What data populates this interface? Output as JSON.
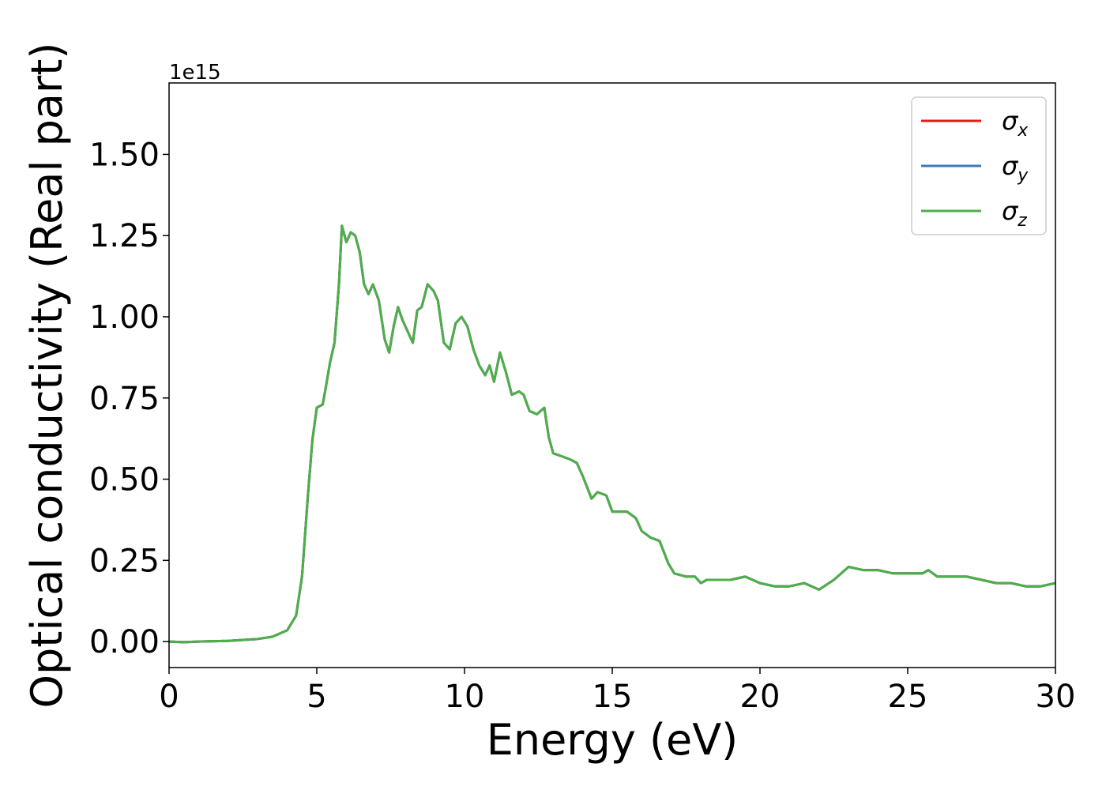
{
  "chart_data": {
    "type": "line",
    "xlabel": "Energy (eV)",
    "ylabel": "Optical conductivity (Real part)",
    "y_offset_label": "1e15",
    "x": [
      0,
      0.5,
      1,
      2,
      3,
      3.5,
      4,
      4.3,
      4.5,
      4.7,
      4.85,
      5.0,
      5.2,
      5.3,
      5.45,
      5.6,
      5.75,
      5.85,
      6.0,
      6.15,
      6.3,
      6.45,
      6.6,
      6.75,
      6.9,
      7.1,
      7.3,
      7.45,
      7.6,
      7.75,
      7.9,
      8.1,
      8.25,
      8.4,
      8.55,
      8.75,
      8.95,
      9.1,
      9.3,
      9.5,
      9.7,
      9.9,
      10.1,
      10.3,
      10.5,
      10.7,
      10.85,
      11.0,
      11.2,
      11.4,
      11.6,
      11.85,
      12.0,
      12.2,
      12.45,
      12.7,
      12.85,
      13.0,
      13.3,
      13.6,
      13.8,
      14.0,
      14.3,
      14.5,
      14.8,
      15.0,
      15.2,
      15.5,
      15.8,
      16.0,
      16.3,
      16.6,
      16.9,
      17.1,
      17.5,
      17.8,
      18.0,
      18.2,
      18.6,
      19.0,
      19.5,
      20.0,
      20.5,
      21.0,
      21.5,
      22.0,
      22.5,
      23.0,
      23.5,
      24.0,
      24.5,
      25.0,
      25.5,
      25.7,
      26.0,
      26.5,
      27.0,
      27.5,
      28.0,
      28.5,
      29.0,
      29.5,
      30.0
    ],
    "series": [
      {
        "name": "σx",
        "color": "#e41a1c",
        "values": [
          0,
          -0.002,
          0,
          0.002,
          0.008,
          0.015,
          0.035,
          0.08,
          0.2,
          0.45,
          0.62,
          0.72,
          0.73,
          0.78,
          0.86,
          0.92,
          1.1,
          1.28,
          1.23,
          1.26,
          1.25,
          1.2,
          1.1,
          1.07,
          1.1,
          1.05,
          0.93,
          0.89,
          0.97,
          1.03,
          0.99,
          0.95,
          0.92,
          1.02,
          1.03,
          1.1,
          1.08,
          1.05,
          0.92,
          0.9,
          0.98,
          1.0,
          0.97,
          0.9,
          0.85,
          0.82,
          0.85,
          0.8,
          0.89,
          0.83,
          0.76,
          0.77,
          0.76,
          0.71,
          0.7,
          0.72,
          0.63,
          0.58,
          0.57,
          0.56,
          0.55,
          0.51,
          0.44,
          0.46,
          0.45,
          0.4,
          0.4,
          0.4,
          0.38,
          0.34,
          0.32,
          0.31,
          0.24,
          0.21,
          0.2,
          0.2,
          0.18,
          0.19,
          0.19,
          0.19,
          0.2,
          0.18,
          0.17,
          0.17,
          0.18,
          0.16,
          0.19,
          0.23,
          0.22,
          0.22,
          0.21,
          0.21,
          0.21,
          0.22,
          0.2,
          0.2,
          0.2,
          0.19,
          0.18,
          0.18,
          0.17,
          0.17,
          0.18
        ]
      },
      {
        "name": "σy",
        "color": "#377eb8",
        "values": [
          0,
          -0.002,
          0,
          0.002,
          0.008,
          0.015,
          0.035,
          0.08,
          0.2,
          0.45,
          0.62,
          0.72,
          0.73,
          0.78,
          0.86,
          0.92,
          1.1,
          1.28,
          1.23,
          1.26,
          1.25,
          1.2,
          1.1,
          1.07,
          1.1,
          1.05,
          0.93,
          0.89,
          0.97,
          1.03,
          0.99,
          0.95,
          0.92,
          1.02,
          1.03,
          1.1,
          1.08,
          1.05,
          0.92,
          0.9,
          0.98,
          1.0,
          0.97,
          0.9,
          0.85,
          0.82,
          0.85,
          0.8,
          0.89,
          0.83,
          0.76,
          0.77,
          0.76,
          0.71,
          0.7,
          0.72,
          0.63,
          0.58,
          0.57,
          0.56,
          0.55,
          0.51,
          0.44,
          0.46,
          0.45,
          0.4,
          0.4,
          0.4,
          0.38,
          0.34,
          0.32,
          0.31,
          0.24,
          0.21,
          0.2,
          0.2,
          0.18,
          0.19,
          0.19,
          0.19,
          0.2,
          0.18,
          0.17,
          0.17,
          0.18,
          0.16,
          0.19,
          0.23,
          0.22,
          0.22,
          0.21,
          0.21,
          0.21,
          0.22,
          0.2,
          0.2,
          0.2,
          0.19,
          0.18,
          0.18,
          0.17,
          0.17,
          0.18
        ]
      },
      {
        "name": "σz",
        "color": "#4daf4a",
        "values": [
          0,
          -0.002,
          0,
          0.002,
          0.008,
          0.015,
          0.035,
          0.08,
          0.2,
          0.45,
          0.62,
          0.72,
          0.73,
          0.78,
          0.86,
          0.92,
          1.1,
          1.28,
          1.23,
          1.26,
          1.25,
          1.2,
          1.1,
          1.07,
          1.1,
          1.05,
          0.93,
          0.89,
          0.97,
          1.03,
          0.99,
          0.95,
          0.92,
          1.02,
          1.03,
          1.1,
          1.08,
          1.05,
          0.92,
          0.9,
          0.98,
          1.0,
          0.97,
          0.9,
          0.85,
          0.82,
          0.85,
          0.8,
          0.89,
          0.83,
          0.76,
          0.77,
          0.76,
          0.71,
          0.7,
          0.72,
          0.63,
          0.58,
          0.57,
          0.56,
          0.55,
          0.51,
          0.44,
          0.46,
          0.45,
          0.4,
          0.4,
          0.4,
          0.38,
          0.34,
          0.32,
          0.31,
          0.24,
          0.21,
          0.2,
          0.2,
          0.18,
          0.19,
          0.19,
          0.19,
          0.2,
          0.18,
          0.17,
          0.17,
          0.18,
          0.16,
          0.19,
          0.23,
          0.22,
          0.22,
          0.21,
          0.21,
          0.21,
          0.22,
          0.2,
          0.2,
          0.2,
          0.19,
          0.18,
          0.18,
          0.17,
          0.17,
          0.18
        ]
      }
    ],
    "xlim": [
      0,
      30
    ],
    "xticks": [
      0,
      5,
      10,
      15,
      20,
      25,
      30
    ],
    "ylim": [
      -0.08,
      1.72
    ],
    "yticks": [
      {
        "value": 0,
        "label": "0.00"
      },
      {
        "value": 0.25,
        "label": "0.25"
      },
      {
        "value": 0.5,
        "label": "0.50"
      },
      {
        "value": 0.75,
        "label": "0.75"
      },
      {
        "value": 1.0,
        "label": "1.00"
      },
      {
        "value": 1.25,
        "label": "1.25"
      },
      {
        "value": 1.5,
        "label": "1.50"
      }
    ],
    "grid": false,
    "legend": "upper right"
  }
}
